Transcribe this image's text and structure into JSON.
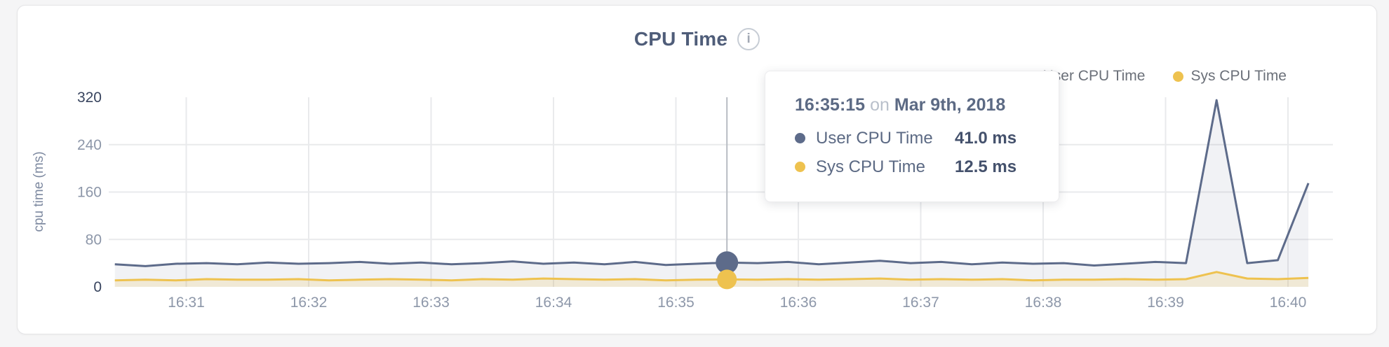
{
  "header": {
    "info_glyph": "i"
  },
  "tooltip": {
    "time": "16:35:15",
    "joiner": "on",
    "date": "Mar 9th, 2018",
    "rows": [
      {
        "value": "41.0 ms"
      },
      {
        "value": "12.5 ms"
      }
    ]
  },
  "chart_data": {
    "type": "area",
    "title": "CPU Time",
    "xlabel": "",
    "ylabel": "cpu time (ms)",
    "ylim": [
      0,
      320
    ],
    "y_ticks": [
      0,
      80,
      160,
      240,
      320
    ],
    "x_domain_s": [
      0,
      600
    ],
    "x_ticks": [
      {
        "label": "16:31",
        "t": 38
      },
      {
        "label": "16:32",
        "t": 98
      },
      {
        "label": "16:33",
        "t": 158
      },
      {
        "label": "16:34",
        "t": 218
      },
      {
        "label": "16:35",
        "t": 278
      },
      {
        "label": "16:36",
        "t": 338
      },
      {
        "label": "16:37",
        "t": 398
      },
      {
        "label": "16:38",
        "t": 458
      },
      {
        "label": "16:39",
        "t": 518
      },
      {
        "label": "16:40",
        "t": 578
      }
    ],
    "x_offset_s": 3,
    "x_step_s": 15,
    "selected_index": 20,
    "selected_time_label": "16:35:15",
    "selected_date_label": "Mar 9th, 2018",
    "grid": true,
    "legend_position": "top-right",
    "series": [
      {
        "name": "User CPU Time",
        "color": "#5d6b8a",
        "fill": "rgba(99,112,140,0.09)",
        "marker_r": 16,
        "unit": "ms",
        "selected_value": 41.0,
        "values": [
          38,
          35,
          39,
          40,
          38,
          41,
          39,
          40,
          42,
          39,
          41,
          38,
          40,
          43,
          39,
          41,
          38,
          42,
          37,
          39,
          41,
          40,
          42,
          38,
          41,
          44,
          40,
          42,
          38,
          41,
          39,
          40,
          36,
          39,
          42,
          40,
          315,
          40,
          45,
          175
        ]
      },
      {
        "name": "Sys CPU Time",
        "color": "#eec24f",
        "fill": "rgba(238,196,80,0.18)",
        "marker_r": 14,
        "unit": "ms",
        "selected_value": 12.5,
        "values": [
          11,
          12,
          11,
          13,
          12,
          12,
          13,
          11,
          12,
          13,
          12,
          11,
          13,
          12,
          14,
          13,
          12,
          13,
          11,
          12,
          12.5,
          12,
          13,
          12,
          13,
          14,
          12,
          13,
          12,
          13,
          11,
          12,
          12,
          13,
          12,
          13,
          25,
          14,
          13,
          15
        ]
      }
    ],
    "style": {
      "grid_color": "#e9eaec",
      "crosshair_color": "#b8bcc3",
      "axis_label_gray": "#8d97a9",
      "axis_label_dark": "#39455f",
      "line_width": 3
    }
  }
}
